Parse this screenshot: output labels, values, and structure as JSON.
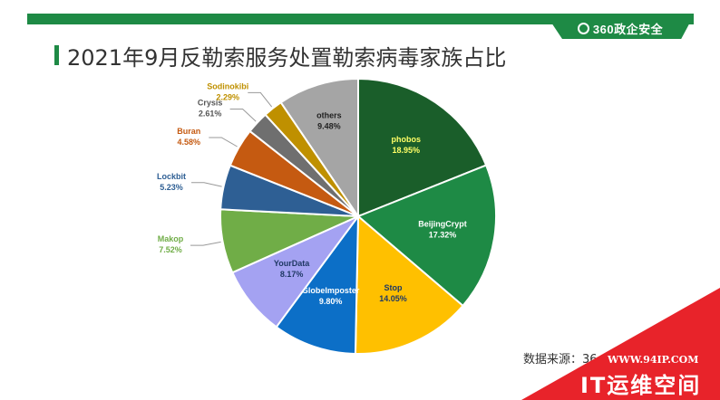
{
  "brand": {
    "text": "360政企安全",
    "icon": "360-logo-icon"
  },
  "source_text": "数据来源：36",
  "watermark": {
    "url": "WWW.94IP.COM",
    "name": "IT运维空间"
  },
  "chart_data": {
    "type": "pie",
    "title": "2021年9月反勒索服务处置勒索病毒家族占比",
    "legend": "none",
    "series": [
      {
        "name": "phobos",
        "value": 18.95,
        "label": "18.95%",
        "color": "#1a5e2a"
      },
      {
        "name": "BeijingCrypt",
        "value": 17.32,
        "label": "17.32%",
        "color": "#1e8a45"
      },
      {
        "name": "Stop",
        "value": 14.05,
        "label": "14.05%",
        "color": "#ffc000"
      },
      {
        "name": "GlobeImposter",
        "value": 9.8,
        "label": "9.80%",
        "color": "#0c6fc7"
      },
      {
        "name": "YourData",
        "value": 8.17,
        "label": "8.17%",
        "color": "#a4a2f2"
      },
      {
        "name": "Makop",
        "value": 7.52,
        "label": "7.52%",
        "color": "#70ad47"
      },
      {
        "name": "Lockbit",
        "value": 5.23,
        "label": "5.23%",
        "color": "#2e5f94"
      },
      {
        "name": "Buran",
        "value": 4.58,
        "label": "4.58%",
        "color": "#c55a11"
      },
      {
        "name": "Crysis",
        "value": 2.61,
        "label": "2.61%",
        "color": "#6f6f6f"
      },
      {
        "name": "Sodinokibi",
        "value": 2.29,
        "label": "2.29%",
        "color": "#bf9000"
      },
      {
        "name": "others",
        "value": 9.48,
        "label": "9.48%",
        "color": "#a5a5a5"
      }
    ]
  }
}
